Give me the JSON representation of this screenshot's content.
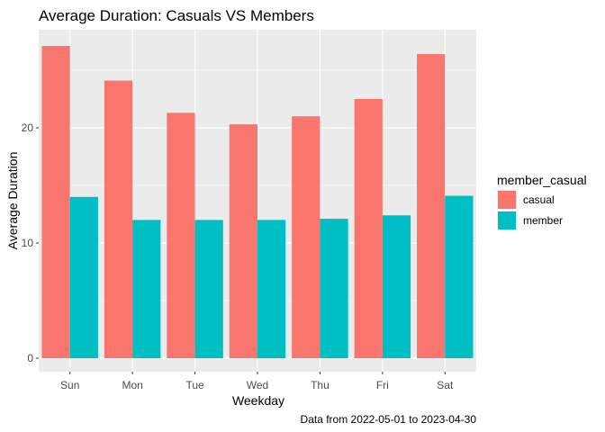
{
  "chart_data": {
    "type": "bar",
    "title": "Average Duration: Casuals VS Members",
    "xlabel": "Weekday",
    "ylabel": "Average Duration",
    "caption": "Data from 2022-05-01 to 2023-04-30",
    "categories": [
      "Sun",
      "Mon",
      "Tue",
      "Wed",
      "Thu",
      "Fri",
      "Sat"
    ],
    "series": [
      {
        "name": "casual",
        "color": "#F8766D",
        "values": [
          27.1,
          24.1,
          21.3,
          20.3,
          21.0,
          22.5,
          26.4
        ]
      },
      {
        "name": "member",
        "color": "#00BFC4",
        "values": [
          14.0,
          12.0,
          12.0,
          12.0,
          12.1,
          12.4,
          14.1
        ]
      }
    ],
    "yticks": [
      0,
      10,
      20
    ],
    "ylim": [
      0,
      28.5
    ],
    "grid": true,
    "legend": {
      "title": "member_casual",
      "position": "right"
    }
  }
}
